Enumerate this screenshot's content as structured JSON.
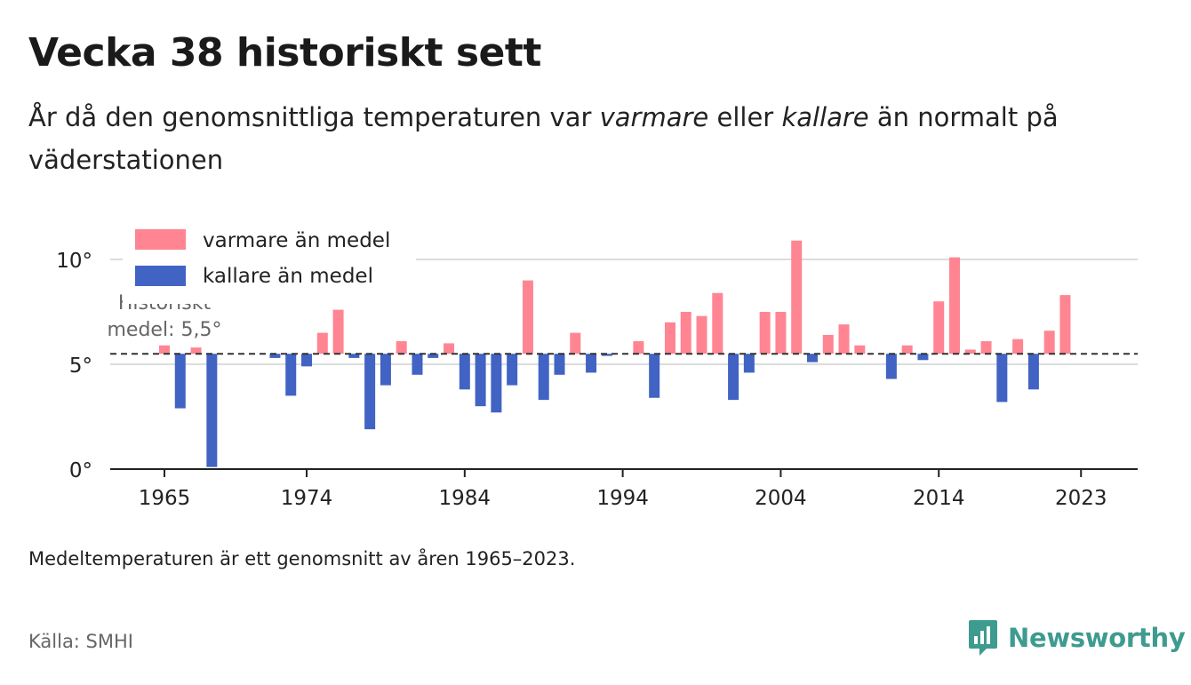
{
  "header": {
    "title": "Vecka 38 historiskt sett",
    "subtitle_parts": [
      "År då den genomsnittliga temperaturen var ",
      "varmare",
      " eller ",
      "kallare",
      " än normalt på väderstationen"
    ]
  },
  "footer": {
    "note": "Medeltemperaturen är ett genomsnitt av åren 1965–2023.",
    "source": "Källa: SMHI",
    "brand": "Newsworthy"
  },
  "colors": {
    "warm": "#ff8593",
    "cold": "#4163c3",
    "brand": "#3e9b8f"
  },
  "chart_data": {
    "type": "bar",
    "baseline": 5.5,
    "baseline_label": [
      "Historiskt",
      "medel: 5,5°"
    ],
    "ylim": [
      0,
      11
    ],
    "yticks": [
      0,
      5,
      10
    ],
    "ytick_labels": [
      "0°",
      "5°",
      "10°"
    ],
    "xticks": [
      1965,
      1974,
      1984,
      1994,
      2004,
      2014,
      2023
    ],
    "legend": {
      "position": "top-left",
      "warm_label": "varmare än medel",
      "cold_label": "kallare än medel"
    },
    "grid": true,
    "series": [
      {
        "year": 1965,
        "value": 5.9
      },
      {
        "year": 1966,
        "value": 2.9
      },
      {
        "year": 1967,
        "value": 5.8
      },
      {
        "year": 1968,
        "value": 0.1
      },
      {
        "year": 1972,
        "value": 5.3
      },
      {
        "year": 1973,
        "value": 3.5
      },
      {
        "year": 1974,
        "value": 4.9
      },
      {
        "year": 1975,
        "value": 6.5
      },
      {
        "year": 1976,
        "value": 7.6
      },
      {
        "year": 1977,
        "value": 5.3
      },
      {
        "year": 1978,
        "value": 1.9
      },
      {
        "year": 1979,
        "value": 4.0
      },
      {
        "year": 1980,
        "value": 6.1
      },
      {
        "year": 1981,
        "value": 4.5
      },
      {
        "year": 1982,
        "value": 5.3
      },
      {
        "year": 1983,
        "value": 6.0
      },
      {
        "year": 1984,
        "value": 3.8
      },
      {
        "year": 1985,
        "value": 3.0
      },
      {
        "year": 1986,
        "value": 2.7
      },
      {
        "year": 1987,
        "value": 4.0
      },
      {
        "year": 1988,
        "value": 9.0
      },
      {
        "year": 1989,
        "value": 3.3
      },
      {
        "year": 1990,
        "value": 4.5
      },
      {
        "year": 1991,
        "value": 6.5
      },
      {
        "year": 1992,
        "value": 4.6
      },
      {
        "year": 1993,
        "value": 5.4
      },
      {
        "year": 1995,
        "value": 6.1
      },
      {
        "year": 1996,
        "value": 3.4
      },
      {
        "year": 1997,
        "value": 7.0
      },
      {
        "year": 1998,
        "value": 7.5
      },
      {
        "year": 1999,
        "value": 7.3
      },
      {
        "year": 2000,
        "value": 8.4
      },
      {
        "year": 2001,
        "value": 3.3
      },
      {
        "year": 2002,
        "value": 4.6
      },
      {
        "year": 2003,
        "value": 7.5
      },
      {
        "year": 2004,
        "value": 7.5
      },
      {
        "year": 2005,
        "value": 10.9
      },
      {
        "year": 2006,
        "value": 5.1
      },
      {
        "year": 2007,
        "value": 6.4
      },
      {
        "year": 2008,
        "value": 6.9
      },
      {
        "year": 2009,
        "value": 5.9
      },
      {
        "year": 2011,
        "value": 4.3
      },
      {
        "year": 2012,
        "value": 5.9
      },
      {
        "year": 2013,
        "value": 5.2
      },
      {
        "year": 2014,
        "value": 8.0
      },
      {
        "year": 2015,
        "value": 10.1
      },
      {
        "year": 2016,
        "value": 5.7
      },
      {
        "year": 2017,
        "value": 6.1
      },
      {
        "year": 2018,
        "value": 3.2
      },
      {
        "year": 2019,
        "value": 6.2
      },
      {
        "year": 2020,
        "value": 3.8
      },
      {
        "year": 2021,
        "value": 6.6
      },
      {
        "year": 2022,
        "value": 8.3
      }
    ]
  }
}
